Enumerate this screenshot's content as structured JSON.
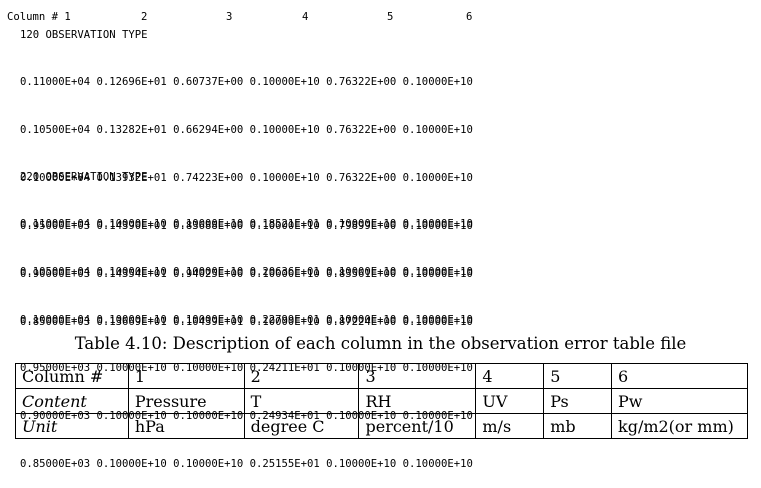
{
  "column_header": {
    "label": "Column # 1",
    "numbers": [
      "2",
      "3",
      "4",
      "5",
      "6"
    ]
  },
  "blocks": [
    {
      "title": "120 OBSERVATION TYPE",
      "rows": [
        "0.11000E+04 0.12696E+01 0.60737E+00 0.10000E+10 0.76322E+00 0.10000E+10",
        "0.10500E+04 0.13282E+01 0.66294E+00 0.10000E+10 0.76322E+00 0.10000E+10",
        "0.10000E+04 0.13932E+01 0.74223E+00 0.10000E+10 0.76322E+00 0.10000E+10",
        "0.95000E+03 0.14390E+01 0.83688E+00 0.10000E+10 0.79899E+00 0.10000E+10",
        "0.90000E+03 0.14354E+01 0.94025E+00 0.10000E+10 0.83561E+00 0.10000E+10",
        "0.85000E+03 0.13669E+01 0.10439E+01 0.10000E+10 0.87224E+00 0.10000E+10"
      ]
    },
    {
      "title": "220 OBSERVATION TYPE",
      "rows": [
        "0.11000E+04 0.10000E+10 0.10000E+10 0.18521E+01 0.10000E+10 0.10000E+10",
        "0.10500E+04 0.10000E+10 0.10000E+10 0.20636E+01 0.10000E+10 0.10000E+10",
        "0.10000E+04 0.10000E+10 0.10000E+10 0.22799E+01 0.10000E+10 0.10000E+10",
        "0.95000E+03 0.10000E+10 0.10000E+10 0.24211E+01 0.10000E+10 0.10000E+10",
        "0.90000E+03 0.10000E+10 0.10000E+10 0.24934E+01 0.10000E+10 0.10000E+10",
        "0.85000E+03 0.10000E+10 0.10000E+10 0.25155E+01 0.10000E+10 0.10000E+10"
      ]
    }
  ],
  "table": {
    "caption": "Table 4.10: Description of each column in the observation error table file",
    "rows": [
      [
        "Column #",
        "1",
        "2",
        "3",
        "4",
        "5",
        "6"
      ],
      [
        "Content",
        "Pressure",
        "T",
        "RH",
        "UV",
        "Ps",
        "Pw"
      ],
      [
        "Unit",
        "hPa",
        "degree C",
        "percent/10",
        "m/s",
        "mb",
        "kg/m2(or mm)"
      ]
    ]
  }
}
